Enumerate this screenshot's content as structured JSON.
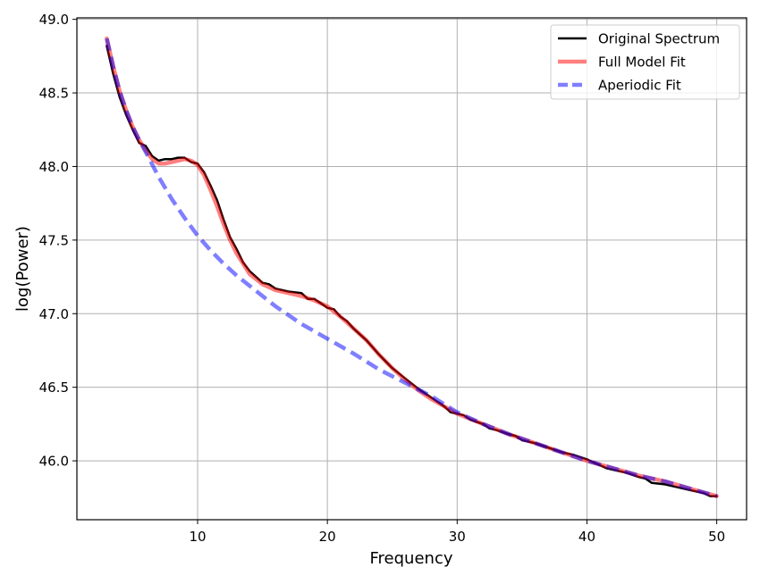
{
  "chart_data": {
    "type": "line",
    "title": "",
    "xlabel": "Frequency",
    "ylabel": "log(Power)",
    "xlim": [
      0.7,
      52.3
    ],
    "ylim": [
      45.6,
      49.01
    ],
    "xticks": [
      10,
      20,
      30,
      40,
      50
    ],
    "yticks": [
      46.0,
      46.5,
      47.0,
      47.5,
      48.0,
      48.5,
      49.0
    ],
    "ytick_labels": [
      "46.0",
      "46.5",
      "47.0",
      "47.5",
      "48.0",
      "48.5",
      "49.0"
    ],
    "xtick_labels": [
      "10",
      "20",
      "30",
      "40",
      "50"
    ],
    "grid": true,
    "legend_position": "upper right",
    "series": [
      {
        "name": "Original Spectrum",
        "color": "#000000",
        "style": "solid",
        "width": 2.5,
        "opacity": 1,
        "x": [
          3,
          3.5,
          4,
          4.5,
          5,
          5.5,
          6,
          6.5,
          7,
          7.5,
          8,
          8.5,
          9,
          9.5,
          10,
          10.5,
          11,
          11.5,
          12,
          12.5,
          13,
          13.5,
          14,
          14.5,
          15,
          15.5,
          16,
          17,
          18,
          18.5,
          19,
          19.5,
          20,
          20.5,
          21,
          21.5,
          22,
          22.5,
          23,
          23.5,
          24,
          25,
          26,
          27,
          28,
          29,
          29.5,
          30,
          30.5,
          31,
          32,
          32.5,
          33,
          34,
          34.5,
          35,
          36,
          37,
          38,
          39,
          40,
          40.5,
          41,
          41.5,
          42,
          43,
          44,
          44.5,
          45,
          46,
          47,
          48,
          49,
          49.5,
          50
        ],
        "y": [
          48.82,
          48.63,
          48.47,
          48.35,
          48.25,
          48.16,
          48.14,
          48.07,
          48.04,
          48.05,
          48.05,
          48.06,
          48.06,
          48.03,
          48.02,
          47.96,
          47.87,
          47.77,
          47.64,
          47.52,
          47.44,
          47.35,
          47.29,
          47.25,
          47.21,
          47.2,
          47.17,
          47.15,
          47.14,
          47.1,
          47.1,
          47.07,
          47.04,
          47.03,
          46.98,
          46.95,
          46.9,
          46.86,
          46.82,
          46.77,
          46.72,
          46.63,
          46.56,
          46.49,
          46.43,
          46.37,
          46.33,
          46.32,
          46.31,
          46.28,
          46.25,
          46.22,
          46.21,
          46.18,
          46.17,
          46.14,
          46.12,
          46.09,
          46.06,
          46.04,
          46.01,
          45.99,
          45.97,
          45.95,
          45.94,
          45.92,
          45.89,
          45.88,
          45.85,
          45.84,
          45.82,
          45.8,
          45.78,
          45.76,
          45.76
        ]
      },
      {
        "name": "Full Model Fit",
        "color": "#ff0000",
        "style": "solid",
        "width": 4.5,
        "opacity": 0.5,
        "x": [
          3,
          3.5,
          4,
          4.5,
          5,
          5.5,
          6,
          6.5,
          7,
          7.5,
          8,
          8.5,
          9,
          9.5,
          10,
          10.5,
          11,
          11.5,
          12,
          12.5,
          13,
          13.5,
          14,
          15,
          16,
          17,
          18,
          19,
          20,
          21,
          22,
          23,
          24,
          25,
          26,
          27,
          28,
          29,
          30,
          32,
          34,
          36,
          38,
          40,
          42,
          44,
          46,
          48,
          50
        ],
        "y": [
          48.87,
          48.68,
          48.51,
          48.38,
          48.27,
          48.18,
          48.11,
          48.05,
          48.02,
          48.02,
          48.03,
          48.04,
          48.05,
          48.04,
          48.01,
          47.94,
          47.84,
          47.73,
          47.61,
          47.5,
          47.41,
          47.34,
          47.27,
          47.2,
          47.16,
          47.14,
          47.12,
          47.09,
          47.05,
          46.98,
          46.9,
          46.82,
          46.72,
          46.63,
          46.55,
          46.48,
          46.42,
          46.37,
          46.32,
          46.25,
          46.18,
          46.12,
          46.06,
          46.0,
          45.95,
          45.9,
          45.86,
          45.81,
          45.76
        ]
      },
      {
        "name": "Aperiodic Fit",
        "color": "#0000ff",
        "style": "dashed",
        "width": 4.5,
        "opacity": 0.5,
        "x": [
          3,
          3.5,
          4,
          4.5,
          5,
          5.5,
          6,
          7,
          8,
          9,
          10,
          11,
          12,
          13,
          14,
          15,
          16,
          17,
          18,
          19,
          20,
          22,
          24,
          26,
          28,
          30,
          32,
          34,
          36,
          38,
          40,
          42,
          44,
          46,
          48,
          50
        ],
        "y": [
          48.87,
          48.68,
          48.51,
          48.38,
          48.27,
          48.18,
          48.1,
          47.93,
          47.78,
          47.65,
          47.53,
          47.43,
          47.34,
          47.26,
          47.19,
          47.12,
          47.05,
          46.99,
          46.93,
          46.88,
          46.83,
          46.73,
          46.62,
          46.53,
          46.44,
          46.33,
          46.25,
          46.18,
          46.12,
          46.06,
          46.0,
          45.95,
          45.9,
          45.86,
          45.81,
          45.76
        ]
      }
    ]
  }
}
